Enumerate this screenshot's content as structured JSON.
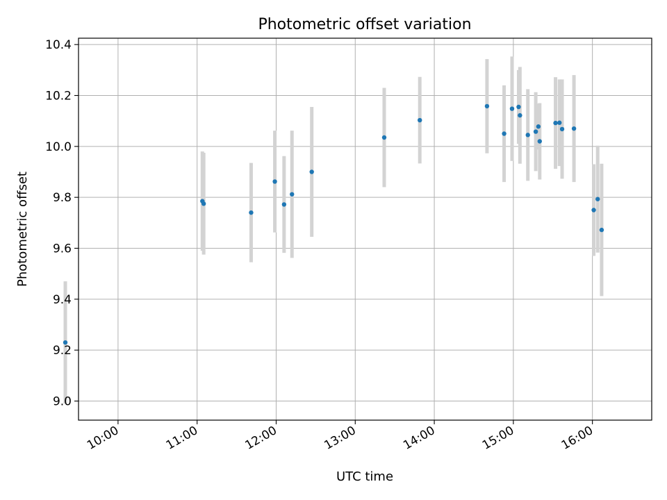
{
  "chart_data": {
    "type": "scatter",
    "title": "Photometric offset variation",
    "xlabel": "UTC time",
    "ylabel": "Photometric offset",
    "x_tick_labels": [
      "10:00",
      "11:00",
      "12:00",
      "13:00",
      "14:00",
      "15:00",
      "16:00"
    ],
    "y_tick_labels": [
      "9.0",
      "9.2",
      "9.4",
      "9.6",
      "9.8",
      "10.0",
      "10.2",
      "10.4"
    ],
    "xlim": [
      "09:30",
      "16:45"
    ],
    "ylim": [
      8.925,
      10.425
    ],
    "grid": true,
    "marker_color": "#1f77b4",
    "errorbar_color": "#d3d3d3",
    "points": [
      {
        "time": "09:20",
        "value": 9.23,
        "err": 0.24
      },
      {
        "time": "11:04",
        "value": 9.785,
        "err": 0.195
      },
      {
        "time": "11:05",
        "value": 9.775,
        "err": 0.2
      },
      {
        "time": "11:41",
        "value": 9.74,
        "err": 0.195
      },
      {
        "time": "11:59",
        "value": 9.862,
        "err": 0.2
      },
      {
        "time": "12:06",
        "value": 9.772,
        "err": 0.19
      },
      {
        "time": "12:12",
        "value": 9.812,
        "err": 0.25
      },
      {
        "time": "12:27",
        "value": 9.9,
        "err": 0.255
      },
      {
        "time": "13:22",
        "value": 10.035,
        "err": 0.195
      },
      {
        "time": "13:49",
        "value": 10.103,
        "err": 0.17
      },
      {
        "time": "14:40",
        "value": 10.158,
        "err": 0.185
      },
      {
        "time": "14:53",
        "value": 10.05,
        "err": 0.19
      },
      {
        "time": "14:59",
        "value": 10.148,
        "err": 0.205
      },
      {
        "time": "15:04",
        "value": 10.155,
        "err": 0.145
      },
      {
        "time": "15:05",
        "value": 10.122,
        "err": 0.19
      },
      {
        "time": "15:11",
        "value": 10.045,
        "err": 0.18
      },
      {
        "time": "15:17",
        "value": 10.058,
        "err": 0.155
      },
      {
        "time": "15:19",
        "value": 10.078,
        "err": 0.09
      },
      {
        "time": "15:20",
        "value": 10.02,
        "err": 0.15
      },
      {
        "time": "15:32",
        "value": 10.092,
        "err": 0.18
      },
      {
        "time": "15:35",
        "value": 10.093,
        "err": 0.17
      },
      {
        "time": "15:37",
        "value": 10.068,
        "err": 0.195
      },
      {
        "time": "15:46",
        "value": 10.07,
        "err": 0.21
      },
      {
        "time": "16:01",
        "value": 9.75,
        "err": 0.18
      },
      {
        "time": "16:04",
        "value": 9.793,
        "err": 0.21
      },
      {
        "time": "16:07",
        "value": 9.672,
        "err": 0.26
      }
    ]
  }
}
